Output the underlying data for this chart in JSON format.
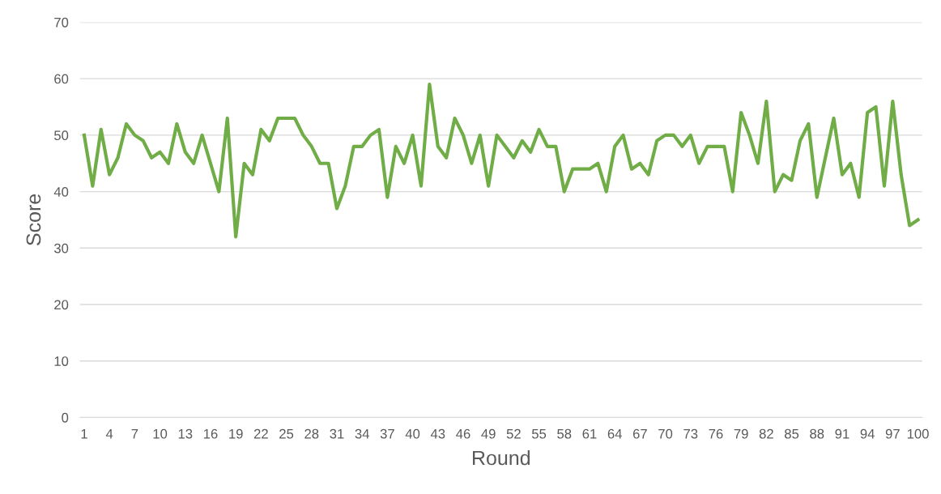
{
  "chart_data": {
    "type": "line",
    "xlabel": "Round",
    "ylabel": "Score",
    "categories": [
      "1",
      null,
      null,
      "4",
      null,
      null,
      "7",
      null,
      null,
      "10",
      null,
      null,
      "13",
      null,
      null,
      "16",
      null,
      null,
      "19",
      null,
      null,
      "22",
      null,
      null,
      "25",
      null,
      null,
      "28",
      null,
      null,
      "31",
      null,
      null,
      "34",
      null,
      null,
      "37",
      null,
      null,
      "40",
      null,
      null,
      "43",
      null,
      null,
      "46",
      null,
      null,
      "49",
      null,
      null,
      "52",
      null,
      null,
      "55",
      null,
      null,
      "58",
      null,
      null,
      "61",
      null,
      null,
      "64",
      null,
      null,
      "67",
      null,
      null,
      "70",
      null,
      null,
      "73",
      null,
      null,
      "76",
      null,
      null,
      "79",
      null,
      null,
      "82",
      null,
      null,
      "85",
      null,
      null,
      "88",
      null,
      null,
      "91",
      null,
      null,
      "94",
      null,
      null,
      "97",
      null,
      null,
      "100"
    ],
    "series": [
      {
        "color": "#70ad47",
        "values": [
          50,
          41,
          51,
          43,
          46,
          52,
          50,
          49,
          46,
          47,
          45,
          52,
          47,
          45,
          50,
          45,
          40,
          53,
          32,
          45,
          43,
          51,
          49,
          53,
          53,
          53,
          50,
          48,
          45,
          45,
          37,
          41,
          48,
          48,
          50,
          51,
          39,
          48,
          45,
          50,
          41,
          59,
          48,
          46,
          53,
          50,
          45,
          50,
          41,
          50,
          48,
          46,
          49,
          47,
          51,
          48,
          48,
          40,
          44,
          44,
          44,
          45,
          40,
          48,
          50,
          44,
          45,
          43,
          49,
          50,
          50,
          48,
          50,
          45,
          48,
          48,
          48,
          40,
          54,
          50,
          45,
          56,
          40,
          43,
          42,
          49,
          52,
          39,
          46,
          53,
          43,
          45,
          39,
          54,
          55,
          41,
          56,
          43,
          34,
          35
        ]
      }
    ],
    "ylim": [
      0,
      70
    ],
    "yticks": [
      0,
      10,
      20,
      30,
      40,
      50,
      60,
      70
    ],
    "grid": "y",
    "legend": false,
    "marker": "none",
    "line_style": "solid"
  }
}
